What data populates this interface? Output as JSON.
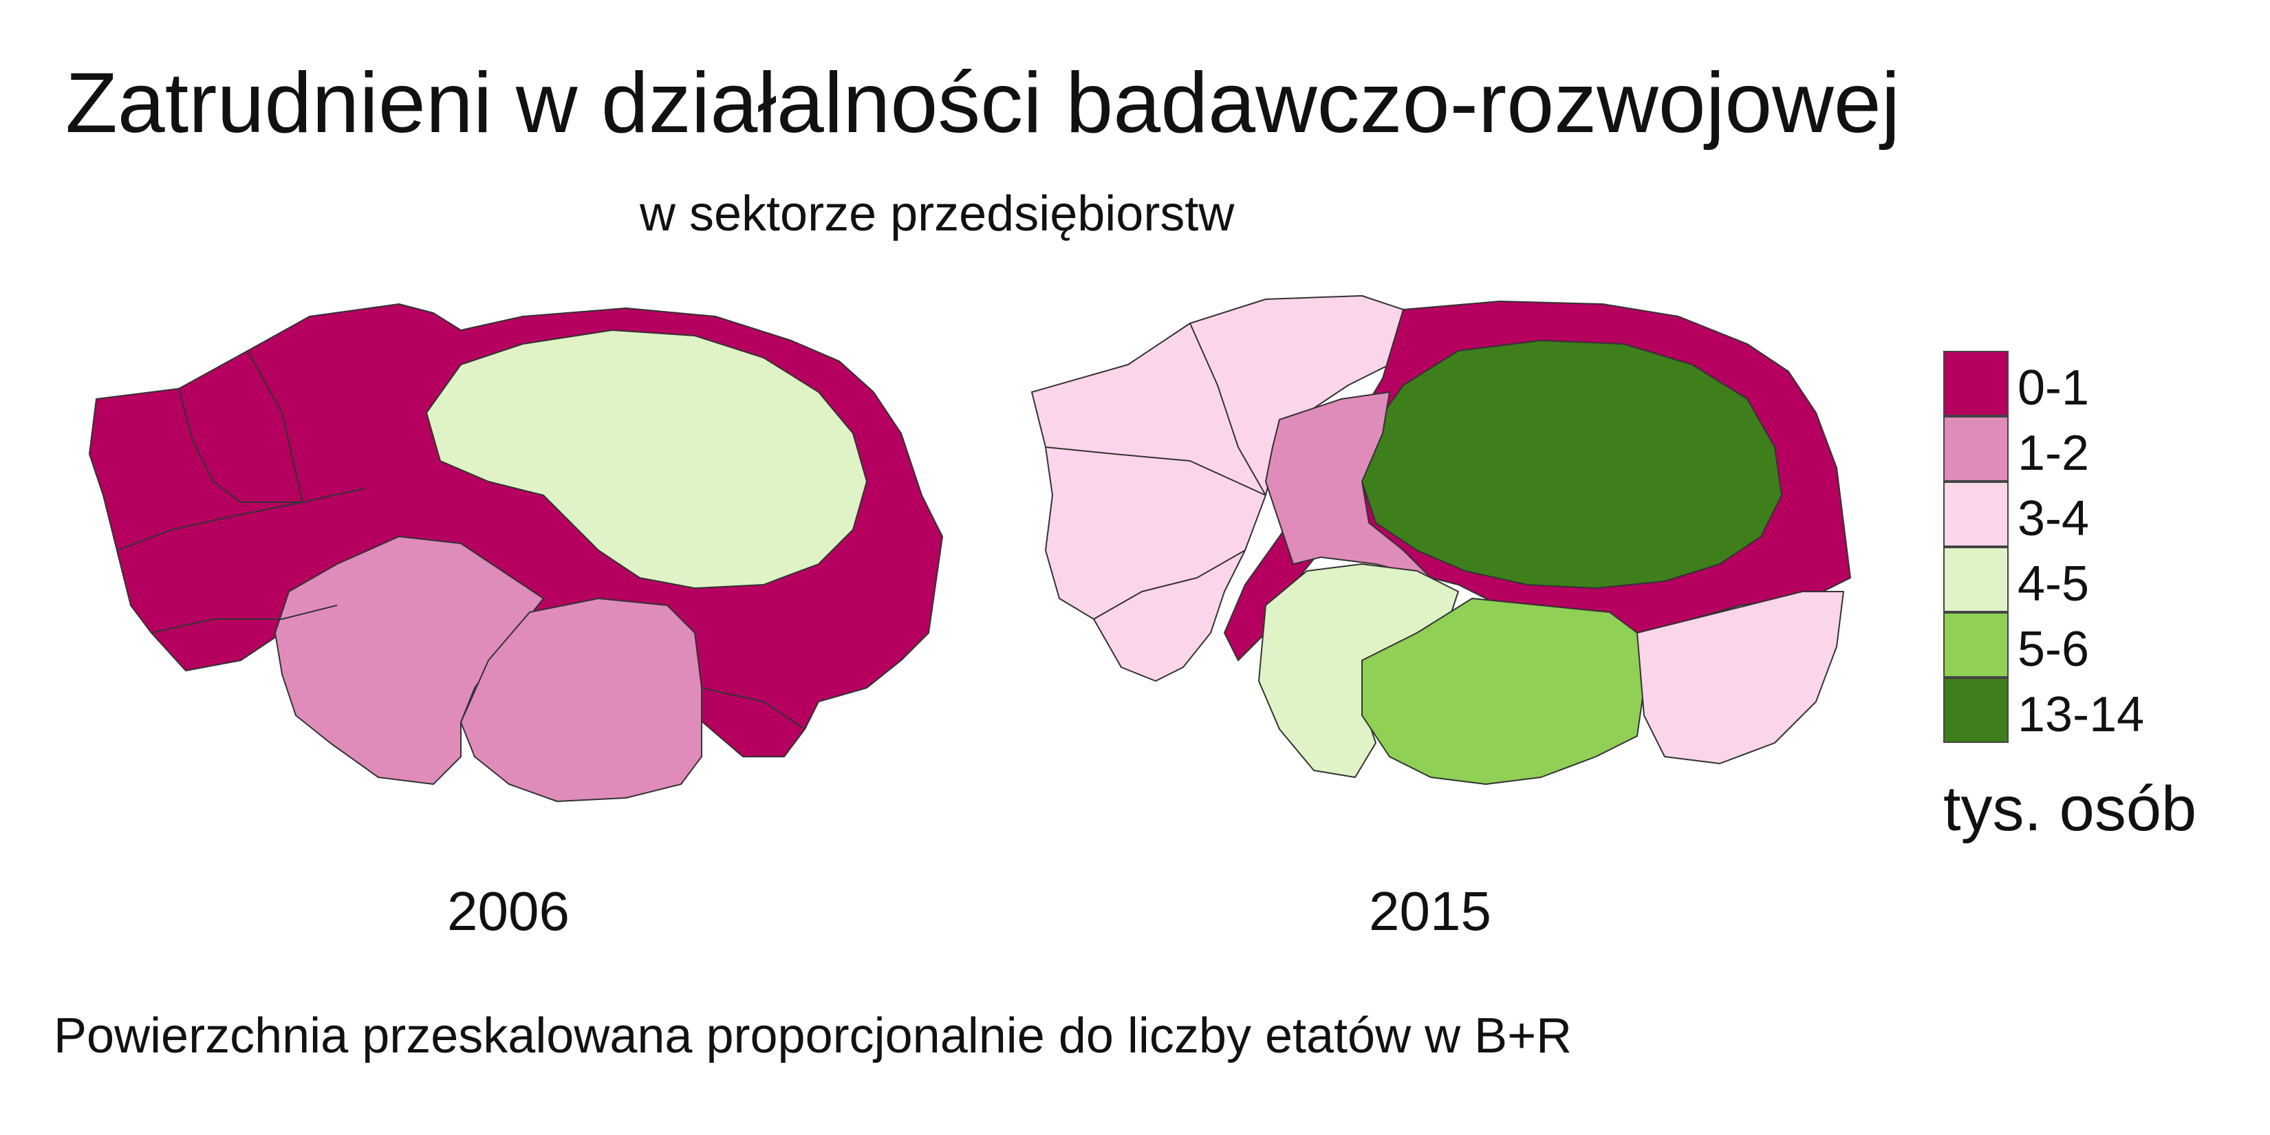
{
  "title": "Zatrudnieni w działalności badawczo-rozwojowej",
  "subtitle": "w sektorze przedsiębiorstw",
  "maps": [
    {
      "year": "2006"
    },
    {
      "year": "2015"
    }
  ],
  "legend": {
    "items": [
      {
        "label": "0-1",
        "color": "#b5005f"
      },
      {
        "label": "1-2",
        "color": "#e08cbb"
      },
      {
        "label": "3-4",
        "color": "#fbd6ea"
      },
      {
        "label": "4-5",
        "color": "#e0f3c6"
      },
      {
        "label": "5-6",
        "color": "#8fd055"
      },
      {
        "label": "13-14",
        "color": "#3e7f1c"
      }
    ],
    "unit": "tys. osób"
  },
  "note": "Powierzchnia przeskalowana proporcjonalnie do liczby etatów w B+R"
}
